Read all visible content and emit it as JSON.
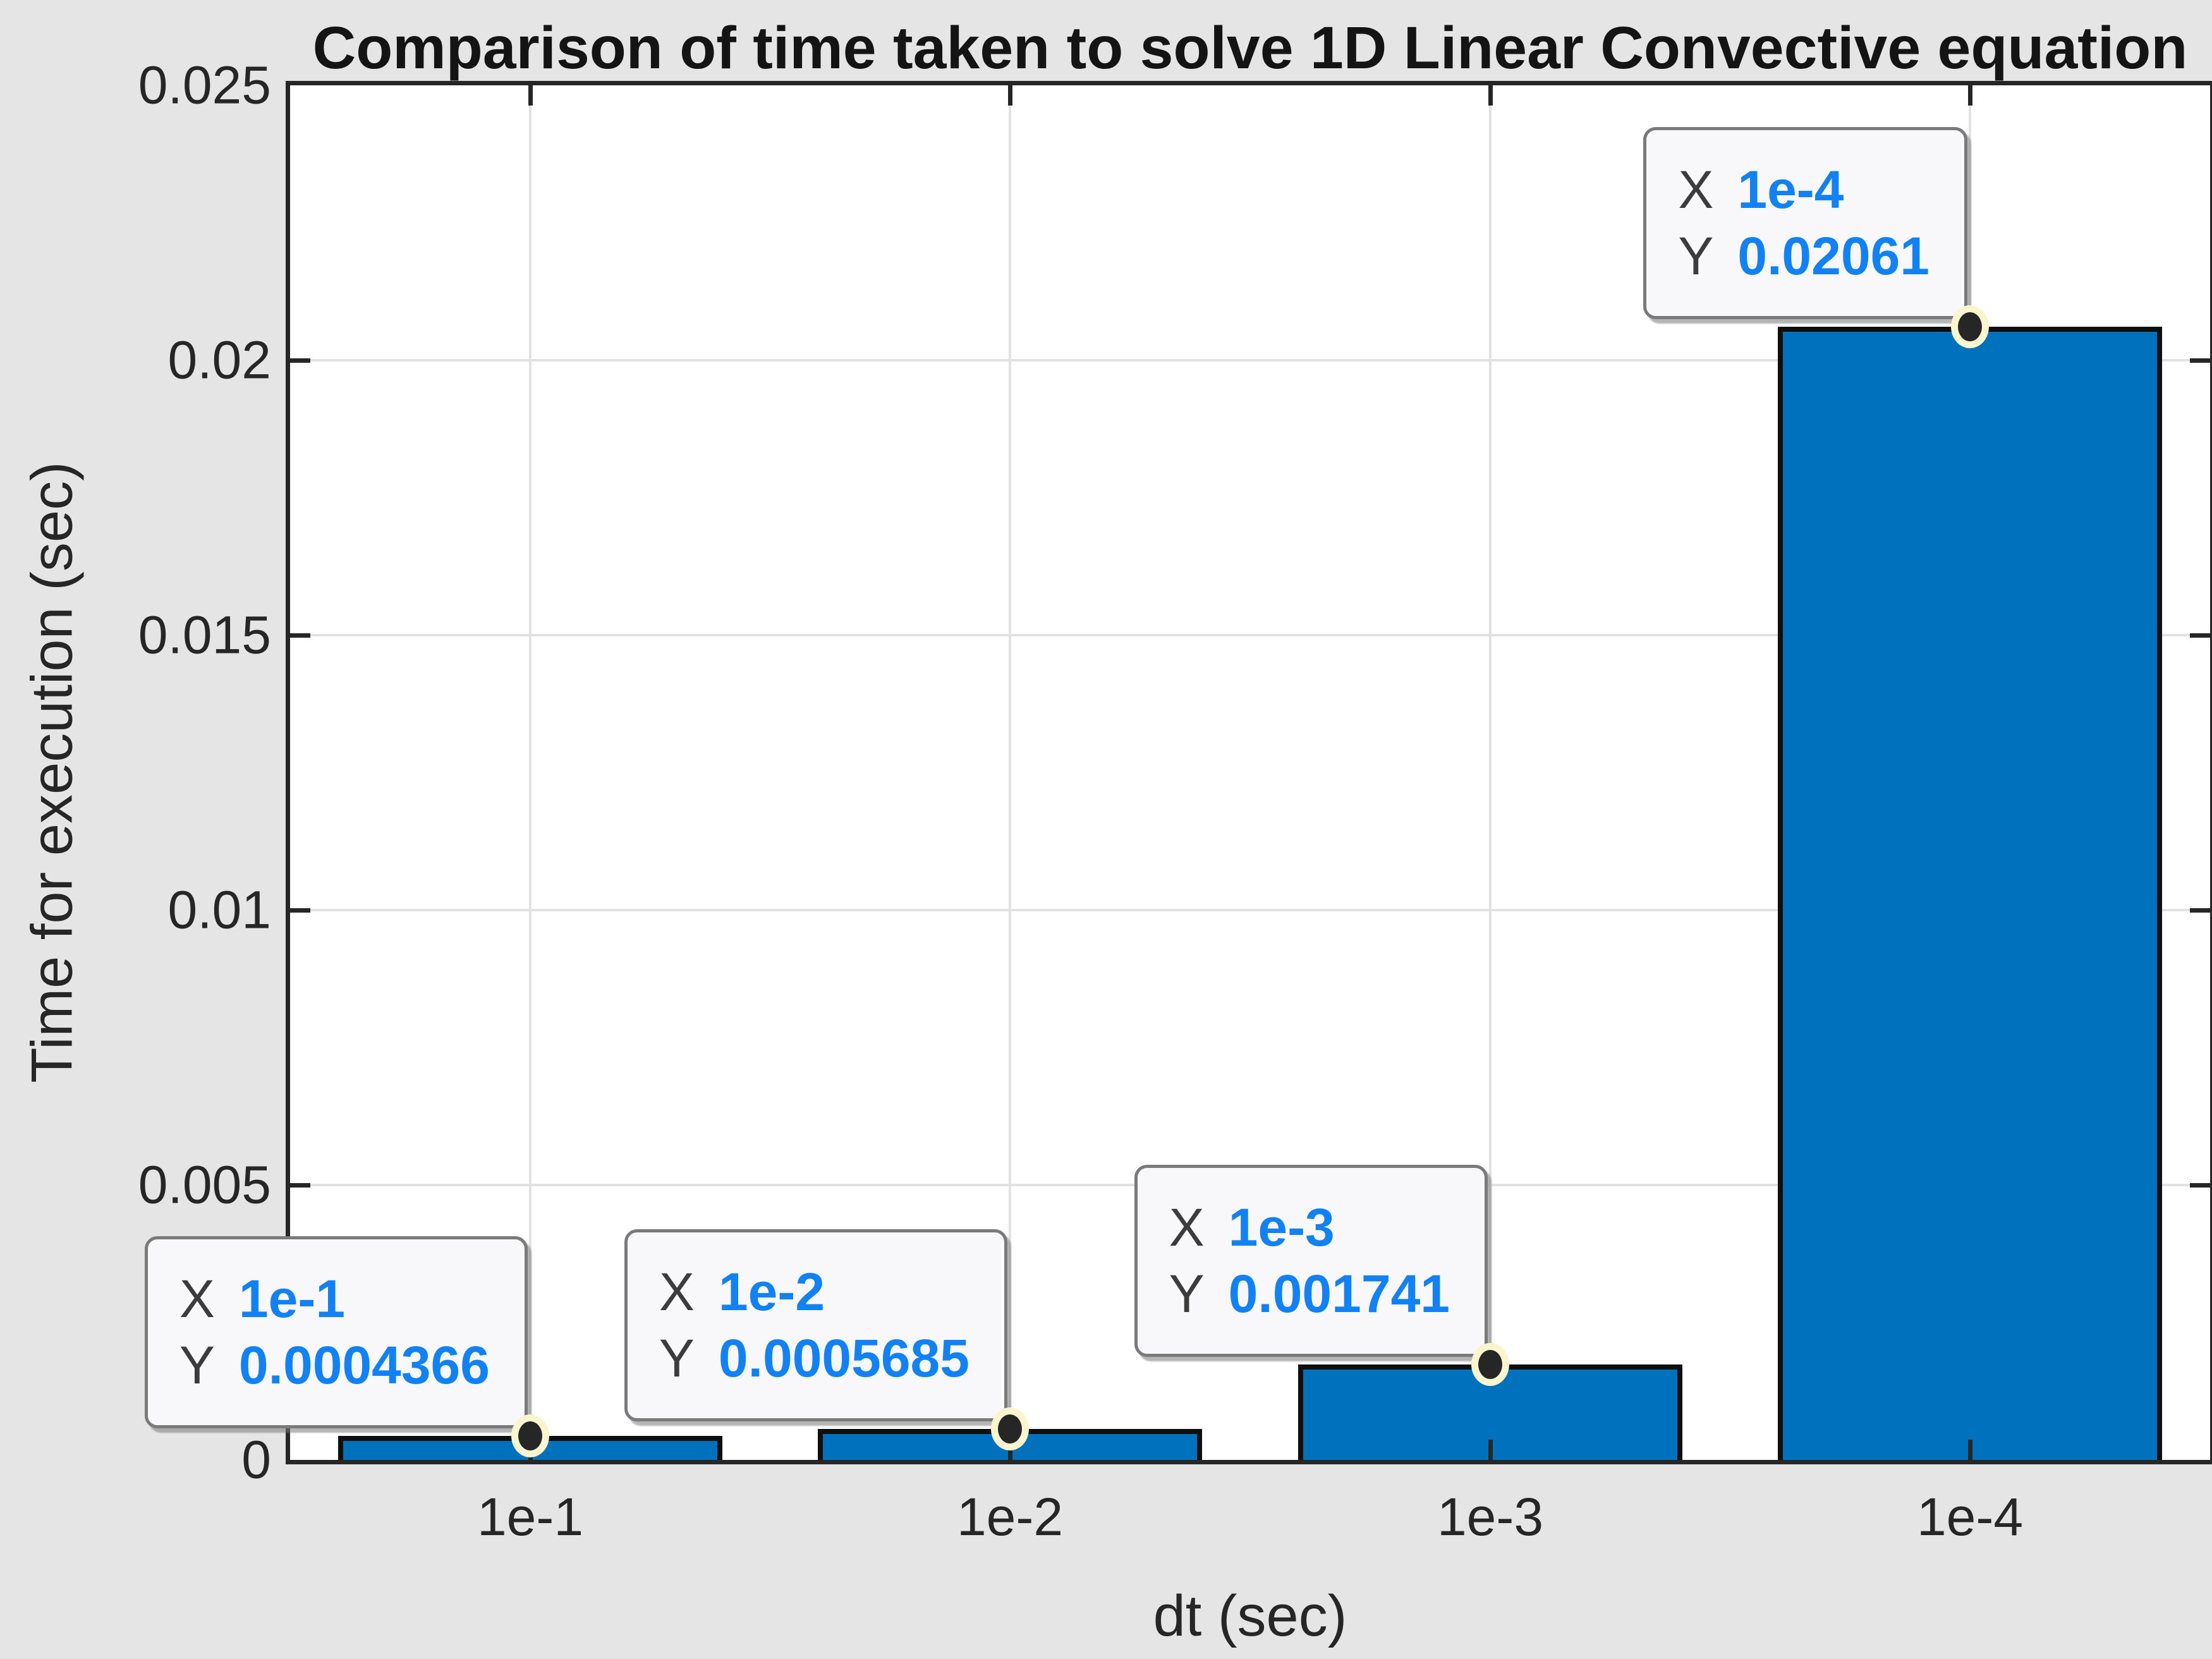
{
  "figure": {
    "background": "#e5e5e5"
  },
  "chart_data": {
    "type": "bar",
    "title": "Comparison of time taken to solve 1D Linear Convective equation",
    "xlabel": "dt (sec)",
    "ylabel": "Time for execution (sec)",
    "categories": [
      "1e-1",
      "1e-2",
      "1e-3",
      "1e-4"
    ],
    "values": [
      0.0004366,
      0.0005685,
      0.001741,
      0.02061
    ],
    "ylim": [
      0,
      0.025
    ],
    "yticks": [
      0,
      0.005,
      0.01,
      0.015,
      0.02,
      0.025
    ],
    "ytick_labels": [
      "0",
      "0.005",
      "0.01",
      "0.015",
      "0.02",
      "0.025"
    ],
    "grid": true,
    "bar_width_fraction": 0.8,
    "colors": {
      "bar_fill": "#0072BD",
      "bar_edge": "#0f0f0f",
      "axis": "#262626",
      "grid": "#e2e2e2",
      "datatip_value": "#1181f4",
      "datatip_label": "#3c3c3c",
      "datatip_background": "#f8f8fb",
      "marker_fill": "#262626",
      "marker_halo": "#f9f5cf"
    },
    "datatips": [
      {
        "x_label": "X",
        "x_value": "1e-1",
        "y_label": "Y",
        "y_value": "0.0004366"
      },
      {
        "x_label": "X",
        "x_value": "1e-2",
        "y_label": "Y",
        "y_value": "0.0005685"
      },
      {
        "x_label": "X",
        "x_value": "1e-3",
        "y_label": "Y",
        "y_value": "0.001741"
      },
      {
        "x_label": "X",
        "x_value": "1e-4",
        "y_label": "Y",
        "y_value": "0.02061"
      }
    ]
  }
}
